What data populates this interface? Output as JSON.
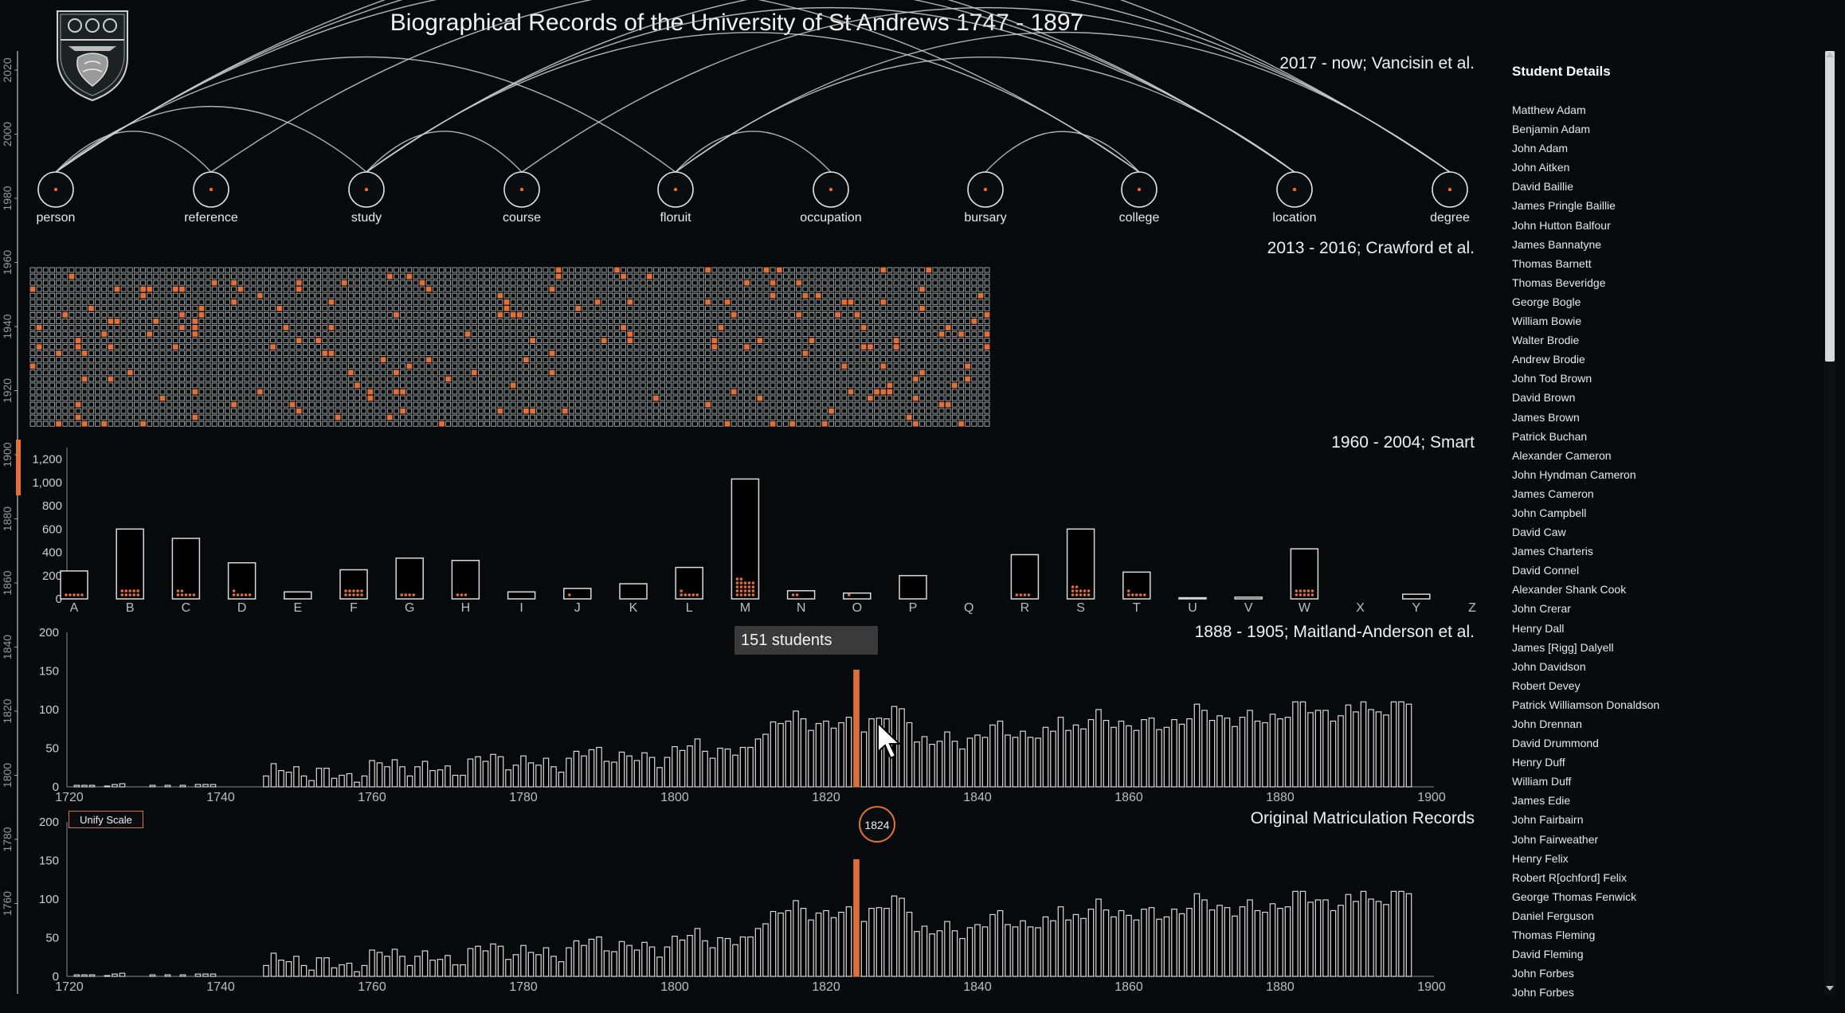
{
  "title": "Biographical Records of the University of St Andrews 1747 - 1897",
  "sections": {
    "network_label": "2017 - now; Vancisin et al.",
    "grid_label": "2013 - 2016; Crawford et al.",
    "letters_label": "1960 - 2004; Smart",
    "maitland_label": "1888 - 1905; Maitland-Anderson et al.",
    "original_label": "Original Matriculation Records"
  },
  "network": {
    "nodes": [
      "person",
      "reference",
      "study",
      "course",
      "floruit",
      "occupation",
      "bursary",
      "college",
      "location",
      "degree"
    ]
  },
  "left_axis_years": [
    "2020",
    "2000",
    "1980",
    "1960",
    "1940",
    "1920",
    "1900",
    "1880",
    "1860",
    "1840",
    "1820",
    "1800",
    "1780",
    "1760"
  ],
  "letters_chart": {
    "type": "bar",
    "categories": [
      "A",
      "B",
      "C",
      "D",
      "E",
      "F",
      "G",
      "H",
      "I",
      "J",
      "K",
      "L",
      "M",
      "N",
      "O",
      "P",
      "Q",
      "R",
      "S",
      "T",
      "U",
      "V",
      "W",
      "X",
      "Y",
      "Z"
    ],
    "values": [
      240,
      600,
      520,
      310,
      60,
      250,
      350,
      330,
      60,
      90,
      130,
      270,
      1030,
      70,
      50,
      200,
      0,
      380,
      600,
      230,
      10,
      15,
      430,
      0,
      40,
      0
    ],
    "highlight_dots": [
      5,
      10,
      7,
      6,
      0,
      10,
      4,
      3,
      0,
      1,
      0,
      6,
      22,
      2,
      1,
      0,
      0,
      4,
      12,
      6,
      0,
      0,
      10,
      0,
      0,
      0
    ],
    "yticks": [
      "0",
      "200",
      "400",
      "600",
      "800",
      "1,000",
      "1,200"
    ],
    "ylim": [
      0,
      1300
    ]
  },
  "hist_chart": {
    "type": "bar",
    "xticks": [
      "1720",
      "1740",
      "1760",
      "1780",
      "1800",
      "1820",
      "1840",
      "1860",
      "1880",
      "1900"
    ],
    "yticks": [
      "0",
      "50",
      "100",
      "150",
      "200"
    ],
    "xlim": [
      1720,
      1900
    ],
    "ylim": [
      0,
      200
    ],
    "highlight_year": 1824,
    "highlight_value": 151
  },
  "tooltip": "151 students",
  "year_badge": "1824",
  "unify_button": "Unify Scale",
  "details": {
    "heading": "Student Details",
    "names": [
      "Matthew Adam",
      "Benjamin Adam",
      "John Adam",
      "John Aitken",
      "David Baillie",
      "James Pringle Baillie",
      "John Hutton Balfour",
      "James Bannatyne",
      "Thomas Barnett",
      "Thomas Beveridge",
      "George Bogle",
      "William Bowie",
      "Walter Brodie",
      "Andrew Brodie",
      "John Tod Brown",
      "David Brown",
      "James Brown",
      "Patrick Buchan",
      "Alexander Cameron",
      "John Hyndman Cameron",
      "James Cameron",
      "John Campbell",
      "David Caw",
      "James Charteris",
      "David Connel",
      "Alexander Shank Cook",
      "John Crerar",
      "Henry Dall",
      "James [Rigg] Dalyell",
      "John Davidson",
      "Robert Devey",
      "Patrick Williamson Donaldson",
      "John Drennan",
      "David Drummond",
      "Henry Duff",
      "William Duff",
      "James Edie",
      "John Fairbairn",
      "John Fairweather",
      "Henry Felix",
      "Robert R[ochford] Felix",
      "George Thomas Fenwick",
      "Daniel Ferguson",
      "Thomas Fleming",
      "David Fleming",
      "John Forbes",
      "John Forbes"
    ]
  },
  "colors": {
    "accent": "#e0703a",
    "bar": "#d9d9d9",
    "background": "#060a0c"
  }
}
